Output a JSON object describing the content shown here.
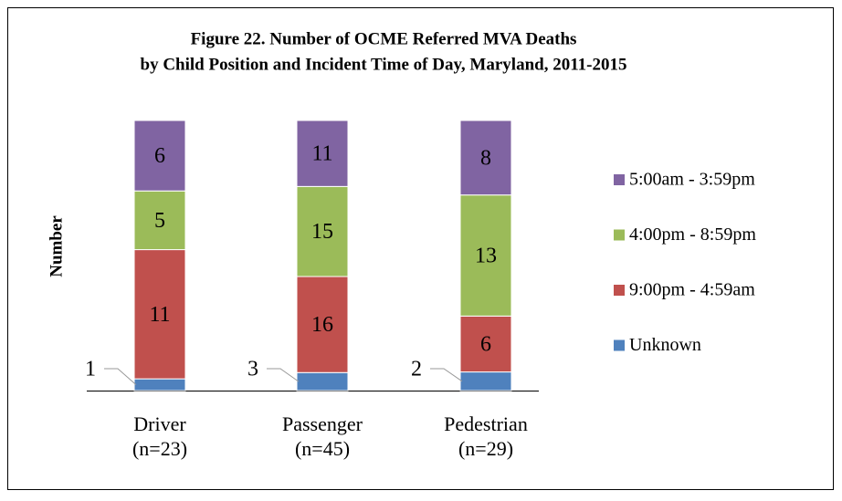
{
  "chart_data": {
    "type": "bar",
    "stack": "percent",
    "title": [
      "Figure 22. Number of OCME Referred MVA Deaths",
      "by Child Position and Incident Time of Day, Maryland, 2011-2015"
    ],
    "y_label": "Number",
    "categories": [
      "Driver (n=23)",
      "Passenger (n=45)",
      "Pedestrian (n=29)"
    ],
    "series": [
      {
        "name": "Unknown",
        "color": "#4f81bd",
        "values": [
          1,
          3,
          2
        ]
      },
      {
        "name": "9:00pm - 4:59am",
        "color": "#c0504d",
        "values": [
          11,
          16,
          6
        ]
      },
      {
        "name": "4:00pm - 8:59pm",
        "color": "#9bbb59",
        "values": [
          5,
          15,
          13
        ]
      },
      {
        "name": "5:00am - 3:59pm",
        "color": "#8064a2",
        "values": [
          6,
          11,
          8
        ]
      }
    ],
    "legend": "right"
  }
}
